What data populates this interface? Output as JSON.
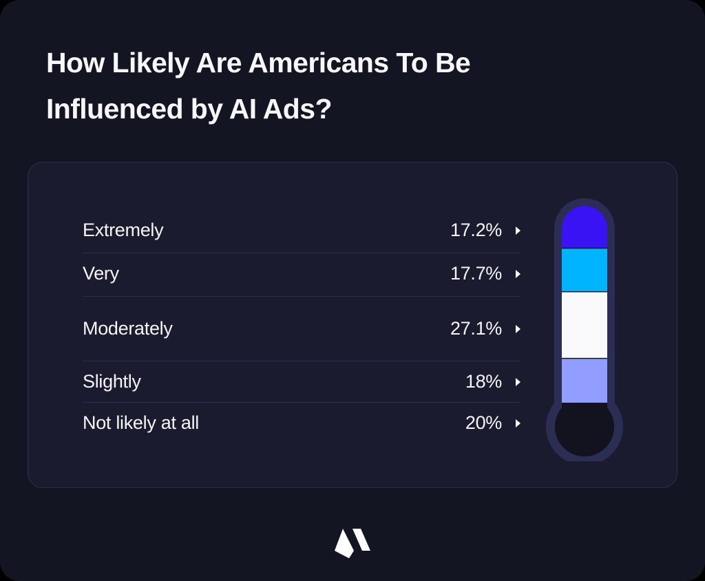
{
  "header": {
    "title": "How Likely Are Americans To Be Influenced by AI Ads?"
  },
  "chart_data": {
    "type": "thermometer-stacked",
    "title": "How Likely Are Americans To Be Influenced by AI Ads?",
    "unit": "%",
    "categories": [
      "Extremely",
      "Very",
      "Moderately",
      "Slightly",
      "Not likely at all"
    ],
    "values": [
      17.2,
      17.7,
      27.1,
      18,
      20
    ],
    "value_labels": [
      "17.2%",
      "17.7%",
      "27.1%",
      "18%",
      "20%"
    ],
    "colors": [
      "#3a13f5",
      "#00b4ff",
      "#f9f9fb",
      "#919dff",
      "#12131f"
    ],
    "stack_order": "top-to-bottom",
    "legend": "left"
  },
  "rows": [
    {
      "label": "Extremely",
      "value": "17.2%",
      "icon": "caret-right-icon"
    },
    {
      "label": "Very",
      "value": "17.7%",
      "icon": "caret-right-icon"
    },
    {
      "label": "Moderately",
      "value": "27.1%",
      "icon": "caret-right-icon"
    },
    {
      "label": "Slightly",
      "value": "18%",
      "icon": "caret-right-icon"
    },
    {
      "label": "Not likely at all",
      "value": "20%",
      "icon": "caret-right-icon"
    }
  ],
  "footer": {
    "logo": "brand-logo-icon"
  },
  "theme": {
    "background": "#131523",
    "panel": "#1a1b2e",
    "thermometer_outline": "#2b2d52",
    "text": "#f5f5f8"
  }
}
